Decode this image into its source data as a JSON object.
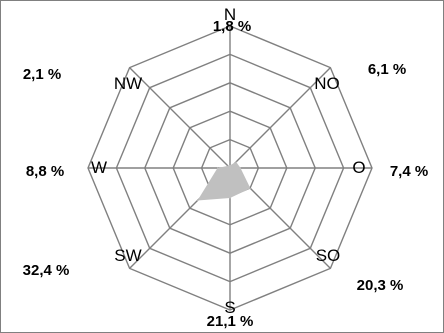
{
  "chart_data": {
    "type": "radar",
    "title": "",
    "directions": [
      "N",
      "NO",
      "O",
      "SO",
      "S",
      "SW",
      "W",
      "NW"
    ],
    "percent_labels": [
      "1,8 %",
      "6,1 %",
      "7,4 %",
      "20,3 %",
      "21,1 %",
      "32,4 %",
      "8,8 %",
      "2,1 %"
    ],
    "values": [
      1.8,
      6.1,
      7.4,
      20.3,
      21.1,
      32.4,
      8.8,
      2.1
    ],
    "unit": "%",
    "rlim": [
      0,
      100
    ],
    "grid_rings": [
      20,
      40,
      60,
      80,
      100
    ],
    "grid": true,
    "colors": {
      "grid": "#808080",
      "fill": "#c0c0c0",
      "frame": "#808080",
      "text": "#000000"
    }
  }
}
